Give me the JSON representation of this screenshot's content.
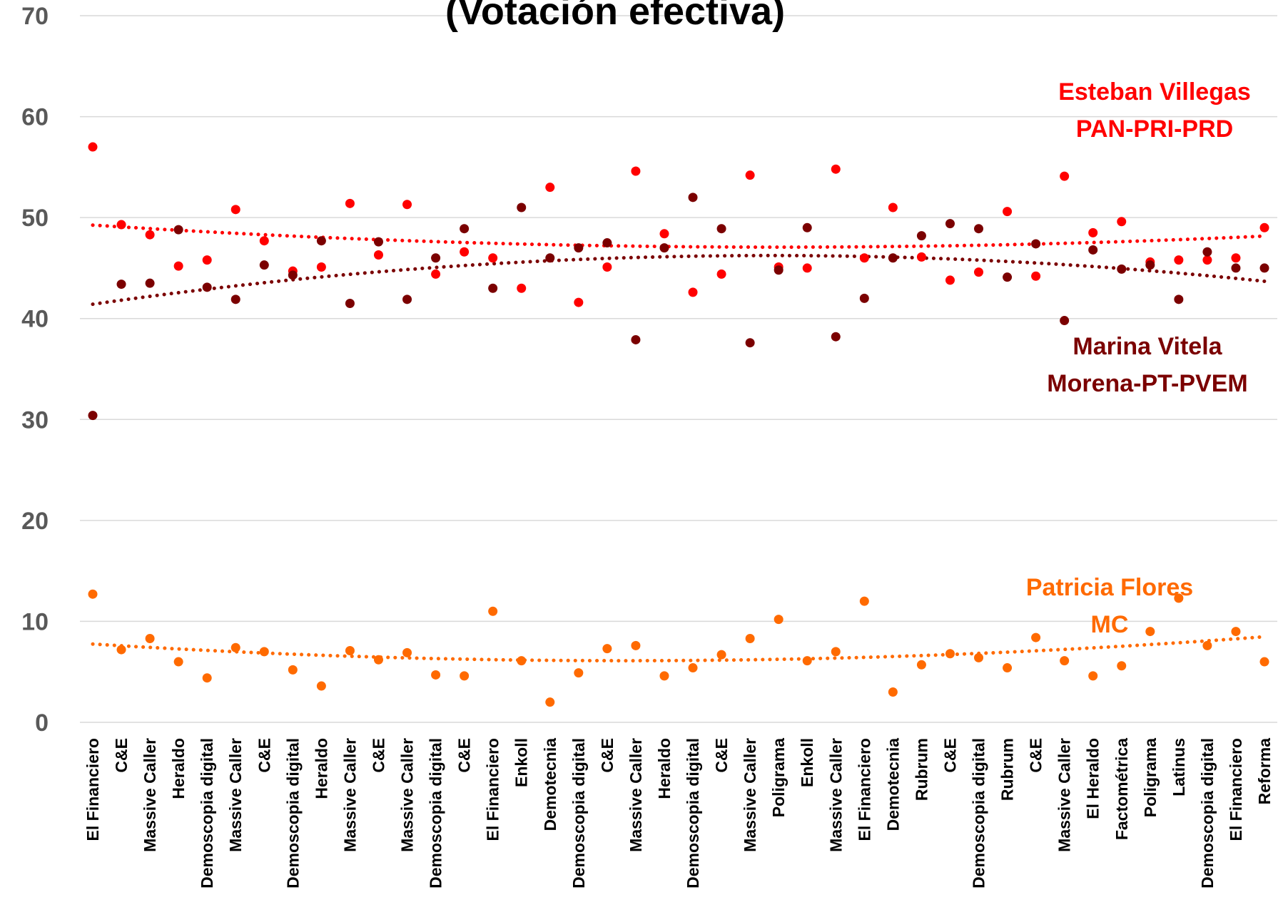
{
  "chart_data": {
    "type": "scatter",
    "title": "(Votación efectiva)",
    "xlabel": "",
    "ylabel": "",
    "ylim": [
      0,
      70
    ],
    "yticks": [
      0,
      10,
      20,
      30,
      40,
      50,
      60,
      70
    ],
    "grid": true,
    "trendlines": "dotted",
    "categories": [
      "El Financiero",
      "C&E",
      "Massive Caller",
      "Heraldo",
      "Demoscopia digital",
      "Massive Caller",
      "C&E",
      "Demoscopia digital",
      "Heraldo",
      "Massive Caller",
      "C&E",
      "Massive Caller",
      "Demoscopia digital",
      "C&E",
      "El Financiero",
      "Enkoll",
      "Demotecnia",
      "Demoscopia digital",
      "C&E",
      "Massive Caller",
      "Heraldo",
      "Demoscopia digital",
      "C&E",
      "Massive Caller",
      "Poligrama",
      "Enkoll",
      "Massive Caller",
      "El Financiero",
      "Demotecnia",
      "Rubrum",
      "C&E",
      "Demoscopia digital",
      "Rubrum",
      "C&E",
      "Massive Caller",
      "El Heraldo",
      "Factométrica",
      "Poligrama",
      "Latinus",
      "Demoscopia digital",
      "El Financiero",
      "Reforma"
    ],
    "series": [
      {
        "name": "Esteban Villegas",
        "label_line2": "PAN-PRI-PRD",
        "color": "#ff0000",
        "values": [
          57,
          49.3,
          48.3,
          45.2,
          45.8,
          50.8,
          47.7,
          44.7,
          45.1,
          51.4,
          46.3,
          51.3,
          44.4,
          46.6,
          46,
          43,
          53,
          41.6,
          45.1,
          54.6,
          48.4,
          42.6,
          44.4,
          54.2,
          45.1,
          45,
          54.8,
          46,
          51,
          46.1,
          43.8,
          44.6,
          50.6,
          44.2,
          54.1,
          48.5,
          49.6,
          45.6,
          45.8,
          45.8,
          46,
          49
        ]
      },
      {
        "name": "Marina Vitela",
        "label_line2": "Morena-PT-PVEM",
        "color": "#7b0000",
        "values": [
          30.4,
          43.4,
          43.5,
          48.8,
          43.1,
          41.9,
          45.3,
          44.3,
          47.7,
          41.5,
          47.6,
          41.9,
          46,
          48.9,
          43,
          51,
          46,
          47,
          47.5,
          37.9,
          47,
          52,
          48.9,
          37.6,
          44.8,
          49,
          38.2,
          42,
          46,
          48.2,
          49.4,
          48.9,
          44.1,
          47.4,
          39.8,
          46.8,
          44.9,
          45.3,
          41.9,
          46.6,
          45,
          45
        ]
      },
      {
        "name": "Patricia Flores",
        "label_line2": "MC",
        "color": "#ff6a00",
        "values": [
          12.7,
          7.2,
          8.3,
          6,
          4.4,
          7.4,
          7,
          5.2,
          3.6,
          7.1,
          6.2,
          6.9,
          4.7,
          4.6,
          11,
          6.1,
          2,
          4.9,
          7.3,
          7.6,
          4.6,
          5.4,
          6.7,
          8.3,
          10.2,
          6.1,
          7,
          12,
          3,
          5.7,
          6.8,
          6.4,
          5.4,
          8.4,
          6.1,
          4.6,
          5.6,
          9,
          12.3,
          7.6,
          9,
          6
        ]
      }
    ]
  }
}
